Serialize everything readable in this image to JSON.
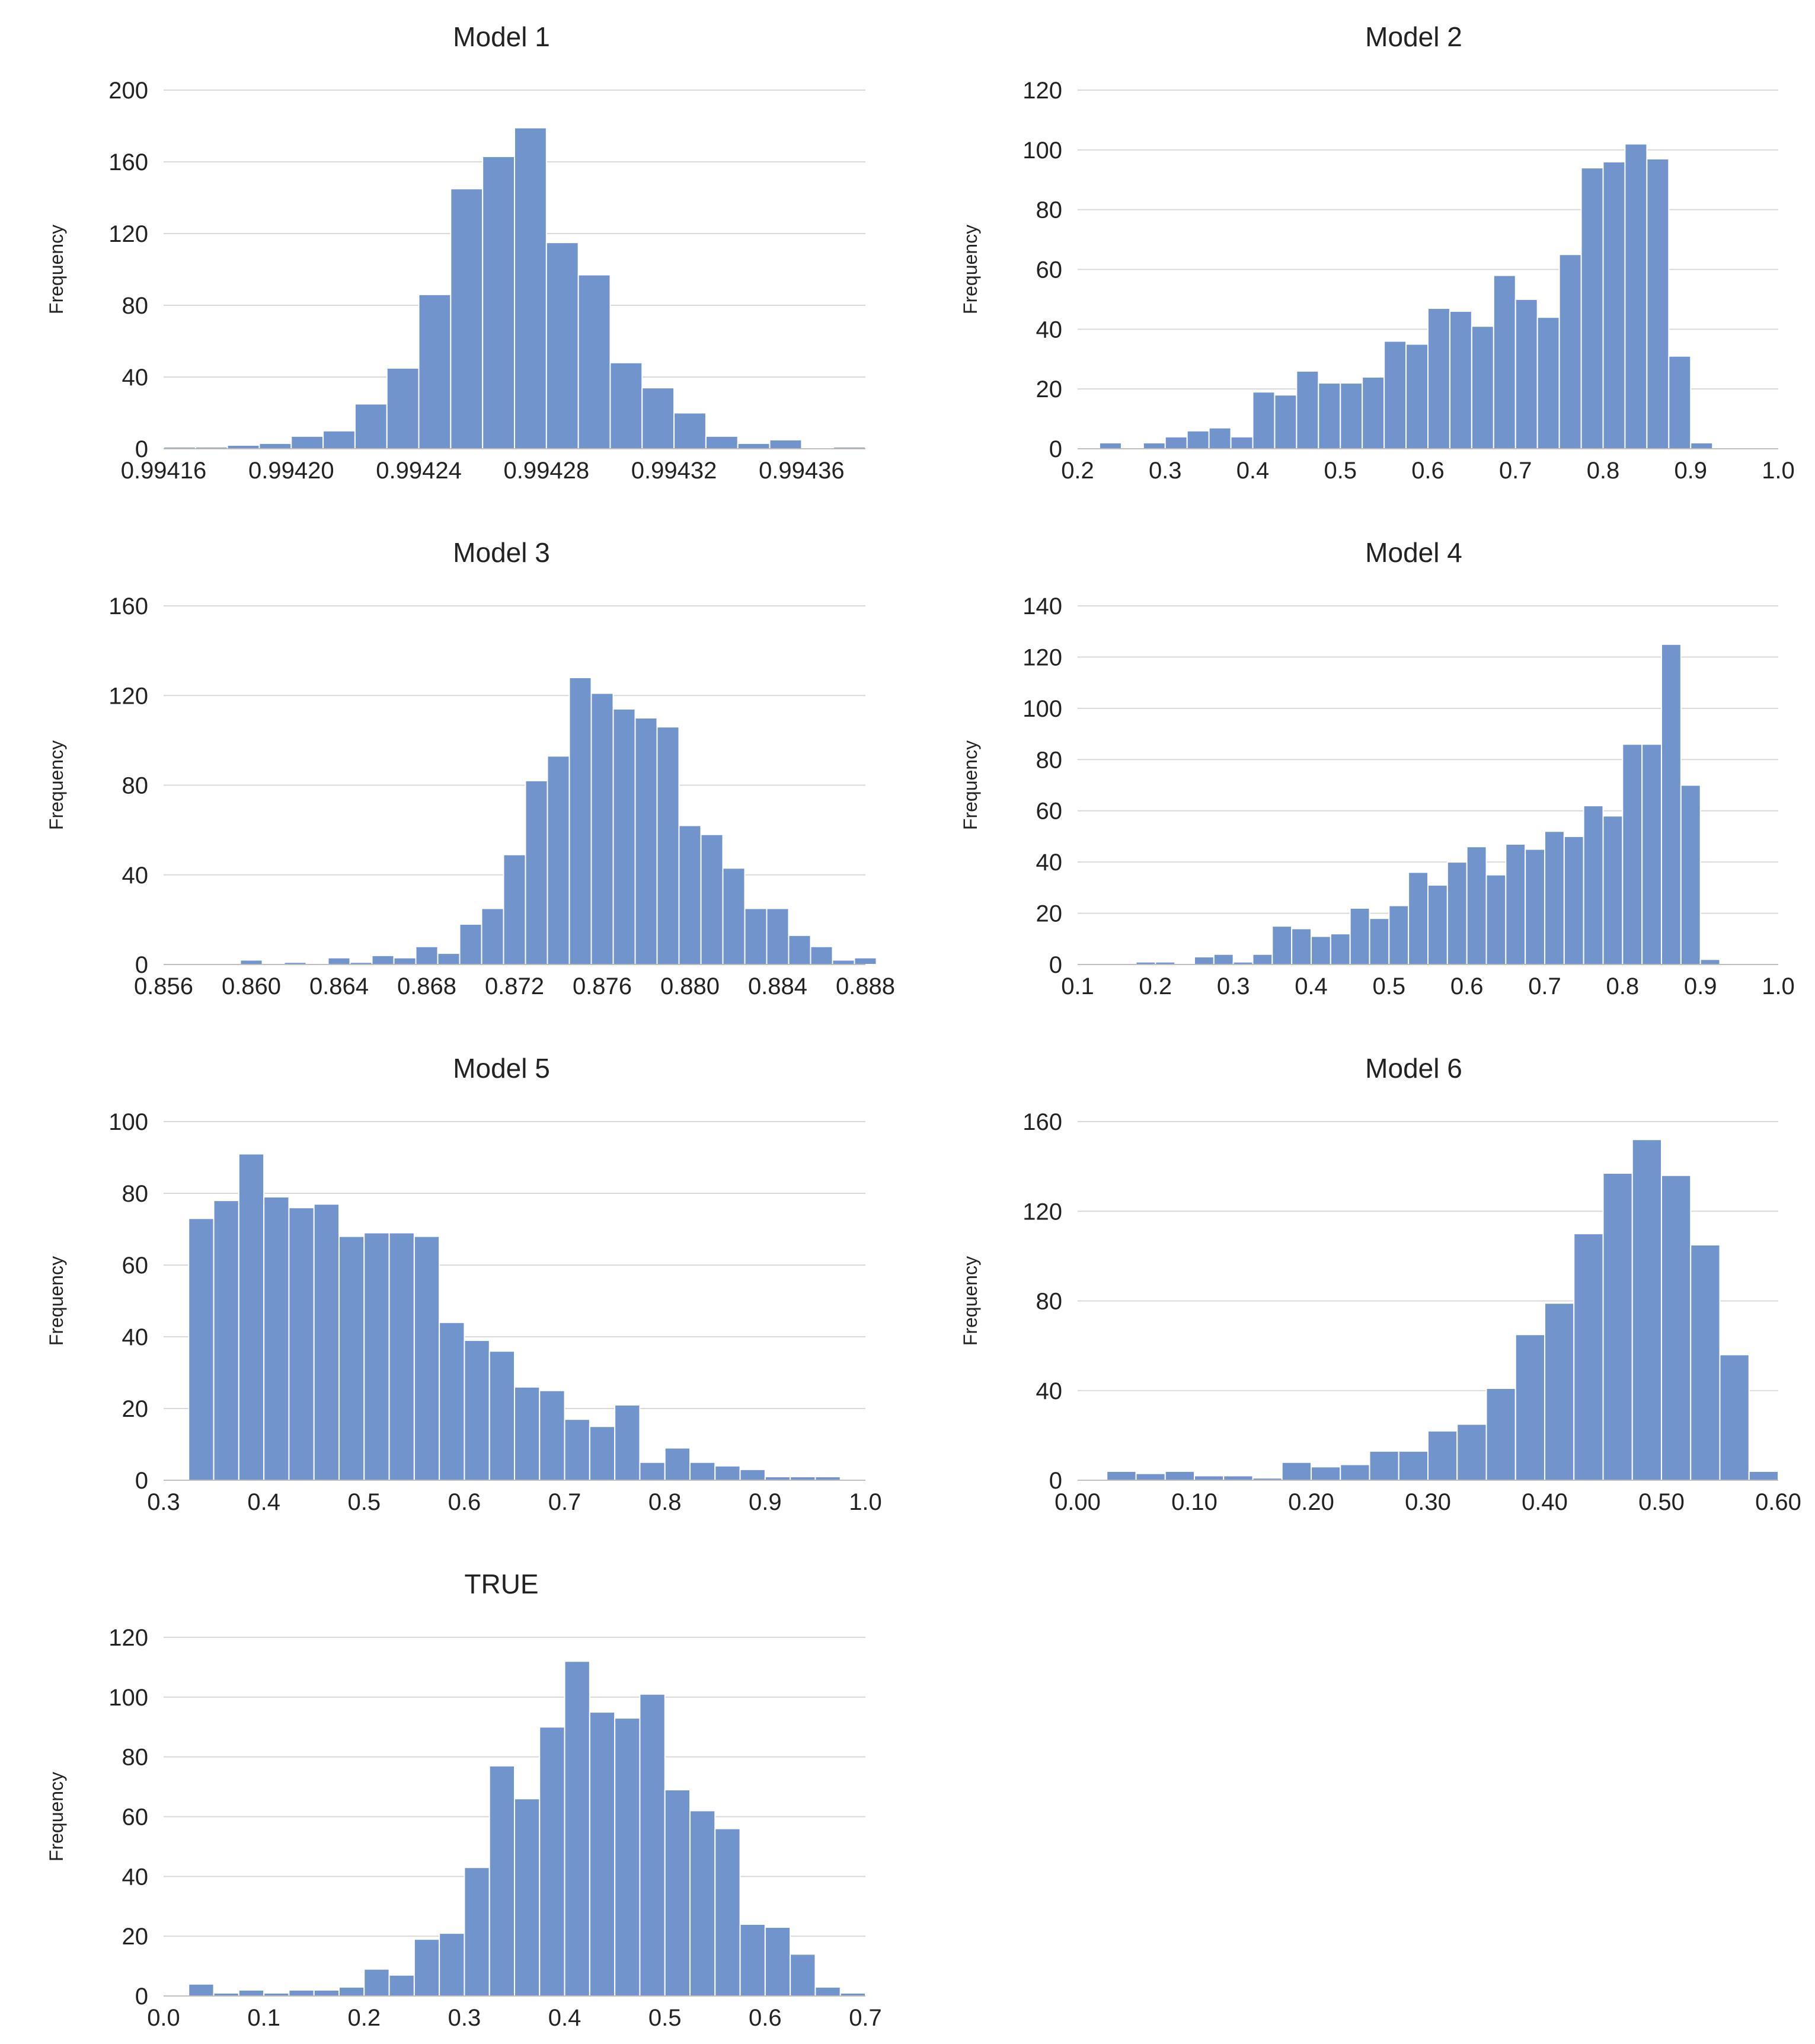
{
  "colors": {
    "bar": "#7294cc",
    "grid": "#d9d9d9",
    "axis": "#bfbfbf",
    "text": "#222222"
  },
  "chart_data": [
    {
      "type": "bar",
      "title": "Model 1",
      "ylabel": "Frequency",
      "xlabel": "",
      "grid": true,
      "x_ticks": [
        "0.99416",
        "0.99420",
        "0.99424",
        "0.99428",
        "0.99432",
        "0.99436"
      ],
      "y_ticks": [
        "0",
        "40",
        "80",
        "120",
        "160",
        "200"
      ],
      "xlim": [
        0.99416,
        0.99438
      ],
      "ylim": [
        0,
        200
      ],
      "bin_width": 1e-05,
      "bin_edges_start": 0.99416,
      "values": [
        1,
        1,
        2,
        3,
        7,
        10,
        25,
        45,
        86,
        145,
        163,
        179,
        115,
        97,
        48,
        34,
        20,
        7,
        3,
        5,
        0,
        1
      ]
    },
    {
      "type": "bar",
      "title": "Model 2",
      "ylabel": "Frequency",
      "xlabel": "",
      "grid": true,
      "x_ticks": [
        "0.2",
        "0.3",
        "0.4",
        "0.5",
        "0.6",
        "0.7",
        "0.8",
        "0.9",
        "1.0"
      ],
      "y_ticks": [
        "0",
        "20",
        "40",
        "60",
        "80",
        "100",
        "120"
      ],
      "xlim": [
        0.2,
        1.0
      ],
      "ylim": [
        0,
        120
      ],
      "bin_width": 0.025,
      "bin_edges_start": 0.225,
      "values": [
        2,
        0,
        2,
        4,
        6,
        7,
        4,
        19,
        18,
        26,
        22,
        22,
        24,
        36,
        35,
        47,
        46,
        41,
        58,
        50,
        44,
        65,
        94,
        96,
        102,
        97,
        31,
        2
      ]
    },
    {
      "type": "bar",
      "title": "Model 3",
      "ylabel": "Frequency",
      "xlabel": "",
      "grid": true,
      "x_ticks": [
        "0.856",
        "0.860",
        "0.864",
        "0.868",
        "0.872",
        "0.876",
        "0.880",
        "0.884",
        "0.888"
      ],
      "y_ticks": [
        "0",
        "40",
        "80",
        "120",
        "160"
      ],
      "xlim": [
        0.856,
        0.888
      ],
      "ylim": [
        0,
        160
      ],
      "bin_width": 0.001,
      "bin_edges_start": 0.8595,
      "values": [
        2,
        0,
        1,
        0,
        3,
        1,
        4,
        3,
        8,
        5,
        18,
        25,
        49,
        82,
        93,
        128,
        121,
        114,
        110,
        106,
        62,
        58,
        43,
        25,
        25,
        13,
        8,
        2,
        3
      ]
    },
    {
      "type": "bar",
      "title": "Model 4",
      "ylabel": "Frequency",
      "xlabel": "",
      "grid": true,
      "x_ticks": [
        "0.1",
        "0.2",
        "0.3",
        "0.4",
        "0.5",
        "0.6",
        "0.7",
        "0.8",
        "0.9",
        "1.0"
      ],
      "y_ticks": [
        "0",
        "20",
        "40",
        "60",
        "80",
        "100",
        "120",
        "140"
      ],
      "xlim": [
        0.1,
        1.0
      ],
      "ylim": [
        0,
        140
      ],
      "bin_width": 0.025,
      "bin_edges_start": 0.175,
      "values": [
        1,
        1,
        0,
        3,
        4,
        1,
        4,
        15,
        14,
        11,
        12,
        22,
        18,
        23,
        36,
        31,
        40,
        46,
        35,
        47,
        45,
        52,
        50,
        62,
        58,
        86,
        86,
        125,
        70,
        2
      ]
    },
    {
      "type": "bar",
      "title": "Model 5",
      "ylabel": "Frequency",
      "xlabel": "",
      "grid": true,
      "x_ticks": [
        "0.3",
        "0.4",
        "0.5",
        "0.6",
        "0.7",
        "0.8",
        "0.9",
        "1.0"
      ],
      "y_ticks": [
        "0",
        "20",
        "40",
        "60",
        "80",
        "100"
      ],
      "xlim": [
        0.3,
        1.0
      ],
      "ylim": [
        0,
        100
      ],
      "bin_width": 0.025,
      "bin_edges_start": 0.325,
      "values": [
        73,
        78,
        91,
        79,
        76,
        77,
        68,
        69,
        69,
        68,
        44,
        39,
        36,
        26,
        25,
        17,
        15,
        21,
        5,
        9,
        5,
        4,
        3,
        1,
        1,
        1
      ]
    },
    {
      "type": "bar",
      "title": "Model 6",
      "ylabel": "Frequency",
      "xlabel": "",
      "grid": true,
      "x_ticks": [
        "0.00",
        "0.10",
        "0.20",
        "0.30",
        "0.40",
        "0.50",
        "0.60"
      ],
      "y_ticks": [
        "0",
        "40",
        "80",
        "120",
        "160"
      ],
      "xlim": [
        0.0,
        0.6
      ],
      "ylim": [
        0,
        160
      ],
      "bin_width": 0.025,
      "bin_edges_start": 0.025,
      "values": [
        4,
        3,
        4,
        2,
        2,
        1,
        8,
        6,
        7,
        13,
        13,
        22,
        25,
        41,
        65,
        79,
        110,
        137,
        152,
        136,
        105,
        56,
        4
      ]
    },
    {
      "type": "bar",
      "title": "TRUE",
      "ylabel": "Frequency",
      "xlabel": "",
      "grid": true,
      "x_ticks": [
        "0.0",
        "0.1",
        "0.2",
        "0.3",
        "0.4",
        "0.5",
        "0.6",
        "0.7"
      ],
      "y_ticks": [
        "0",
        "20",
        "40",
        "60",
        "80",
        "100",
        "120"
      ],
      "xlim": [
        0.0,
        0.7
      ],
      "ylim": [
        0,
        120
      ],
      "bin_width": 0.025,
      "bin_edges_start": 0.025,
      "values": [
        4,
        1,
        2,
        1,
        2,
        2,
        3,
        9,
        7,
        19,
        21,
        43,
        77,
        66,
        90,
        112,
        95,
        93,
        101,
        69,
        62,
        56,
        24,
        23,
        14,
        3,
        1
      ]
    }
  ]
}
